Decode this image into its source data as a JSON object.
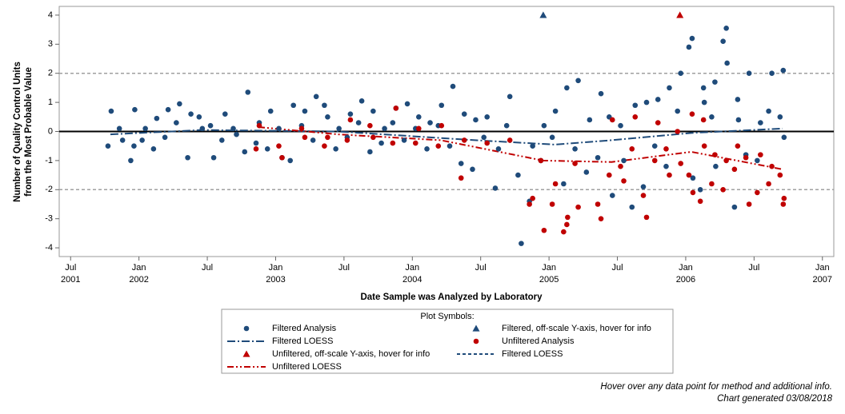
{
  "chart_data": {
    "type": "scatter",
    "x_label": "Date Sample was Analyzed by Laboratory",
    "y_label": [
      "Number of Quality Control Units",
      "from the Most Probable Value"
    ],
    "xlim": [
      "2001-06",
      "2007-02"
    ],
    "ylim": [
      -4.3,
      4.3
    ],
    "yticks": [
      -4,
      -3,
      -2,
      -1,
      0,
      1,
      2,
      3,
      4
    ],
    "xticks": [
      {
        "value": "2001-07",
        "label": "Jul"
      },
      {
        "value": "2002-01",
        "label": "Jan"
      },
      {
        "value": "2002-07",
        "label": "Jul"
      },
      {
        "value": "2003-01",
        "label": "Jan"
      },
      {
        "value": "2003-07",
        "label": "Jul"
      },
      {
        "value": "2004-01",
        "label": "Jan"
      },
      {
        "value": "2004-07",
        "label": "Jul"
      },
      {
        "value": "2005-01",
        "label": "Jan"
      },
      {
        "value": "2005-07",
        "label": "Jul"
      },
      {
        "value": "2006-01",
        "label": "Jan"
      },
      {
        "value": "2006-07",
        "label": "Jul"
      },
      {
        "value": "2007-01",
        "label": "Jan"
      }
    ],
    "x_year_labels": [
      {
        "value": "2001-07",
        "label": "2001"
      },
      {
        "value": "2002-01",
        "label": "2002"
      },
      {
        "value": "2003-01",
        "label": "2003"
      },
      {
        "value": "2004-01",
        "label": "2004"
      },
      {
        "value": "2005-01",
        "label": "2005"
      },
      {
        "value": "2006-01",
        "label": "2006"
      },
      {
        "value": "2007-01",
        "label": "2007"
      }
    ],
    "reference_lines": [
      {
        "value": 0,
        "color": "#000000",
        "style": "solid"
      },
      {
        "value": 2,
        "color": "#a0a0a0",
        "style": "dash"
      },
      {
        "value": -2,
        "color": "#a0a0a0",
        "style": "dash"
      }
    ],
    "series": [
      {
        "name": "Filtered Analysis",
        "color": "#1f4b7a",
        "symbol": "circle",
        "x": [
          "2001-10",
          "2001-10",
          "2001-11",
          "2001-11",
          "2001-12",
          "2001-12",
          "2001-12",
          "2002-01",
          "2002-01",
          "2002-02",
          "2002-02",
          "2002-03",
          "2002-03",
          "2002-04",
          "2002-04",
          "2002-05",
          "2002-05",
          "2002-06",
          "2002-06",
          "2002-07",
          "2002-07",
          "2002-08",
          "2002-08",
          "2002-09",
          "2002-09",
          "2002-10",
          "2002-10",
          "2002-11",
          "2002-11",
          "2002-12",
          "2002-12",
          "2003-01",
          "2003-01",
          "2003-02",
          "2003-02",
          "2003-03",
          "2003-03",
          "2003-04",
          "2003-04",
          "2003-05",
          "2003-05",
          "2003-06",
          "2003-06",
          "2003-07",
          "2003-07",
          "2003-08",
          "2003-08",
          "2003-09",
          "2003-09",
          "2003-10",
          "2003-10",
          "2003-11",
          "2003-11",
          "2003-12",
          "2003-12",
          "2004-01",
          "2004-01",
          "2004-02",
          "2004-02",
          "2004-03",
          "2004-03",
          "2004-04",
          "2004-04",
          "2004-05",
          "2004-05",
          "2004-06",
          "2004-06",
          "2004-07",
          "2004-07",
          "2004-08",
          "2004-08",
          "2004-09",
          "2004-09",
          "2004-10",
          "2004-10",
          "2004-11",
          "2004-11",
          "2004-12",
          "2004-12",
          "2005-01",
          "2005-01",
          "2005-02",
          "2005-02",
          "2005-03",
          "2005-03",
          "2005-04",
          "2005-04",
          "2005-05",
          "2005-05",
          "2005-06",
          "2005-06",
          "2005-07",
          "2005-07",
          "2005-08",
          "2005-08",
          "2005-09",
          "2005-09",
          "2005-10",
          "2005-10",
          "2005-11",
          "2005-11",
          "2005-12",
          "2005-12",
          "2006-01",
          "2006-01",
          "2006-01",
          "2006-02",
          "2006-02",
          "2006-02",
          "2006-03",
          "2006-03",
          "2006-03",
          "2006-04",
          "2006-04",
          "2006-04",
          "2006-05",
          "2006-05",
          "2006-05",
          "2006-06",
          "2006-06",
          "2006-07",
          "2006-07",
          "2006-08",
          "2006-08",
          "2006-09",
          "2006-09",
          "2006-09"
        ],
        "values": [
          0.7,
          -0.5,
          -0.3,
          0.1,
          -0.5,
          -1.0,
          0.75,
          0.1,
          -0.3,
          0.45,
          -0.6,
          0.75,
          -0.2,
          0.95,
          0.3,
          0.6,
          -0.9,
          0.1,
          0.5,
          -0.9,
          0.2,
          0.6,
          -0.3,
          -0.1,
          0.1,
          1.35,
          -0.7,
          0.3,
          -0.4,
          0.7,
          -0.6,
          -0.9,
          0.1,
          0.9,
          -1.0,
          0.7,
          0.2,
          1.2,
          -0.3,
          0.5,
          0.9,
          0.1,
          -0.6,
          0.6,
          -0.2,
          1.05,
          0.3,
          0.7,
          -0.7,
          0.1,
          -0.4,
          0.8,
          0.3,
          0.95,
          -0.3,
          0.5,
          0.1,
          0.3,
          -0.6,
          0.9,
          0.2,
          1.55,
          -0.5,
          0.6,
          -1.1,
          0.4,
          -1.3,
          0.5,
          -0.2,
          -0.6,
          -1.95,
          1.2,
          0.2,
          -3.85,
          -1.5,
          -0.5,
          -2.4,
          0.2,
          -1.0,
          0.7,
          -0.2,
          1.5,
          -1.8,
          1.75,
          -0.6,
          0.4,
          -1.4,
          1.3,
          -0.9,
          -2.2,
          0.5,
          -1.0,
          0.2,
          0.9,
          -2.6,
          1.0,
          -1.9,
          1.1,
          -0.5,
          1.5,
          -1.2,
          2.0,
          0.7,
          3.2,
          2.9,
          -1.6,
          1.5,
          -2.0,
          1.0,
          1.7,
          0.5,
          -1.2,
          3.55,
          3.1,
          2.35,
          1.1,
          -2.6,
          0.4,
          2.0,
          -0.8,
          0.3,
          -1.0,
          2.0,
          0.7,
          2.1,
          0.5,
          -0.2
        ]
      },
      {
        "name": "Filtered, off-scale Y-axis, hover for info",
        "color": "#1f4b7a",
        "symbol": "triangle",
        "x": [
          "2004-12"
        ],
        "values": [
          4
        ]
      },
      {
        "name": "Filtered LOESS",
        "color": "#1f4b7a",
        "symbol": "line",
        "style": "dashdot",
        "x": [
          "2001-10",
          "2002-06",
          "2003-06",
          "2004-06",
          "2005-01",
          "2005-06",
          "2006-01",
          "2006-09"
        ],
        "values": [
          -0.1,
          0.05,
          0.0,
          -0.3,
          -0.45,
          -0.3,
          -0.05,
          0.1
        ]
      },
      {
        "name": "Unfiltered Analysis",
        "color": "#c00000",
        "symbol": "circle",
        "x": [
          "2002-11",
          "2002-11",
          "2003-01",
          "2003-01",
          "2003-03",
          "2003-03",
          "2003-05",
          "2003-05",
          "2003-07",
          "2003-07",
          "2003-09",
          "2003-09",
          "2003-11",
          "2003-11",
          "2004-01",
          "2004-01",
          "2004-03",
          "2004-03",
          "2004-05",
          "2004-05",
          "2004-07",
          "2004-09",
          "2004-11",
          "2004-11",
          "2004-12",
          "2004-12",
          "2005-01",
          "2005-01",
          "2005-02",
          "2005-02",
          "2005-02",
          "2005-03",
          "2005-03",
          "2005-05",
          "2005-05",
          "2005-06",
          "2005-06",
          "2005-07",
          "2005-07",
          "2005-08",
          "2005-08",
          "2005-09",
          "2005-09",
          "2005-10",
          "2005-10",
          "2005-11",
          "2005-11",
          "2005-12",
          "2005-12",
          "2006-01",
          "2006-01",
          "2006-01",
          "2006-02",
          "2006-02",
          "2006-02",
          "2006-03",
          "2006-03",
          "2006-04",
          "2006-04",
          "2006-05",
          "2006-05",
          "2006-06",
          "2006-06",
          "2006-07",
          "2006-07",
          "2006-08",
          "2006-08",
          "2006-09",
          "2006-09",
          "2006-09"
        ],
        "values": [
          0.2,
          -0.6,
          -0.9,
          -0.5,
          -0.2,
          0.1,
          -0.2,
          -0.5,
          0.4,
          -0.3,
          -0.2,
          0.2,
          0.8,
          -0.4,
          0.1,
          -0.4,
          0.2,
          -0.5,
          -0.3,
          -1.6,
          -0.4,
          -0.3,
          -2.3,
          -2.5,
          -3.4,
          -1.0,
          -1.8,
          -2.5,
          -3.2,
          -3.45,
          -2.95,
          -2.6,
          -1.1,
          -3.0,
          -2.5,
          0.4,
          -1.5,
          -1.7,
          -1.2,
          0.5,
          -0.6,
          -2.95,
          -2.2,
          0.3,
          -1.0,
          -1.5,
          -0.6,
          -1.1,
          0.0,
          0.6,
          -1.5,
          -2.1,
          0.4,
          -2.4,
          -0.5,
          -0.8,
          -1.8,
          -1.0,
          -2.0,
          -0.5,
          -1.3,
          -2.5,
          -0.9,
          -0.8,
          -2.1,
          -1.2,
          -1.8,
          -2.5,
          -1.5,
          -2.3
        ]
      },
      {
        "name": "Unfiltered, off-scale Y-axis, hover for info",
        "color": "#c00000",
        "symbol": "triangle",
        "x": [
          "2005-12"
        ],
        "values": [
          4
        ]
      },
      {
        "name": "Unfiltered LOESS",
        "color": "#c00000",
        "symbol": "line",
        "style": "dashdotdot",
        "x": [
          "2002-11",
          "2003-06",
          "2004-03",
          "2004-12",
          "2005-06",
          "2006-01",
          "2006-09"
        ],
        "values": [
          0.15,
          -0.1,
          -0.3,
          -1.0,
          -1.05,
          -0.7,
          -1.3
        ]
      }
    ],
    "legend": {
      "title": "Plot Symbols:",
      "extra": [
        {
          "name": "Filtered LOESS",
          "color": "#1f4b7a",
          "style": "dash"
        }
      ]
    },
    "notes": [
      "Hover over any data point for method and additional info.",
      "Chart generated 03/08/2018"
    ]
  }
}
